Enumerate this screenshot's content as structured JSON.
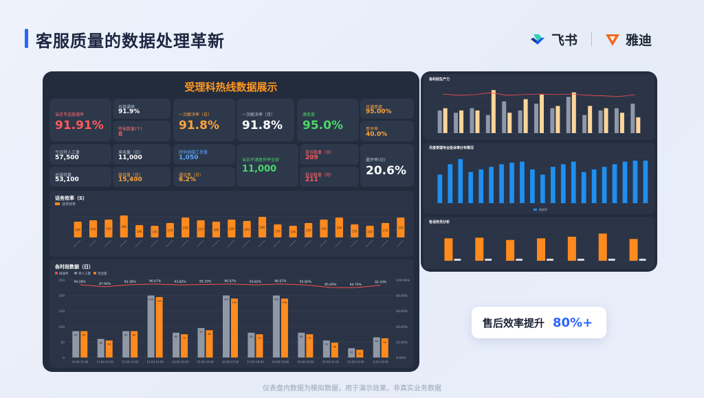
{
  "slide": {
    "title": "客服质量的数据处理革新",
    "brand_feishu": "飞书",
    "brand_yadea": "雅迪",
    "callout_text": "售后效率提升",
    "callout_value": "80%+",
    "footnote": "仪表盘内数据为模拟数据，用于演示效果，非真实业务数据"
  },
  "dashboard": {
    "title": "受理科热线数据展示",
    "kpis": {
      "big_red": {
        "label": "当日专送接通率",
        "value": "91.91%"
      },
      "sub1": {
        "label": "月接通率",
        "value": "91.9%"
      },
      "sub2": {
        "label": "呼损数量(个)",
        "value": "8"
      },
      "first_day": {
        "label": "一次解决率（日）",
        "value": "91.8%"
      },
      "first_month": {
        "label": "一次解决率（月）",
        "value": "91.8%"
      },
      "satisfaction": {
        "label": "满意度",
        "value": "95.0%"
      },
      "r1": {
        "label": "月满意度",
        "value": "95.00%"
      },
      "r2": {
        "label": "参评率",
        "value": "40.0%"
      },
      "manual": {
        "label": "今日转人工量",
        "value": "57,500"
      },
      "incoming": {
        "label": "来电量（日）",
        "value": "11,000"
      },
      "transfer": {
        "label": "转供销服工单量",
        "value": "1,050"
      },
      "dissatisfied": {
        "label": "当日不满意外呼全部",
        "value": "11,000"
      },
      "complaint": {
        "label": "投诉数量（日）",
        "value": "209"
      },
      "total_calls": {
        "label": "总接待量",
        "value": "53,100"
      },
      "served": {
        "label": "接待量（日）",
        "value": "15,400"
      },
      "rate": {
        "label": "通话率（日）",
        "value": "6.2%"
      },
      "complaint_month": {
        "label": "投诉数量（月）",
        "value": "211"
      },
      "eval": {
        "label": "邀评率(日)",
        "value": "20.6%"
      }
    },
    "efficiency": {
      "title": "话务效率（S）",
      "legend": "话务效率",
      "values": [
        190,
        210,
        220,
        280,
        140,
        130,
        170,
        250,
        210,
        190,
        220,
        200,
        260,
        150,
        130,
        170,
        220,
        250,
        150,
        130,
        170,
        250
      ]
    },
    "hourly": {
      "title": "各时段数据（日）",
      "legend": [
        "接通率",
        "转人工量",
        "电话量"
      ],
      "slots": [
        "10:00-11:00",
        "11:00-12:00",
        "12:00-13:00",
        "13:00-14:00",
        "14:00-15:00",
        "15:00-16:00",
        "16:00-17:00",
        "17:00-18:00",
        "18:00-19:00",
        "19:00-20:00",
        "20:00-21:00",
        "21:00-22:00",
        "8:00-10:00"
      ],
      "grey": [
        85,
        60,
        85,
        200,
        80,
        95,
        200,
        80,
        200,
        80,
        55,
        30,
        65
      ],
      "orange": [
        85,
        55,
        85,
        195,
        75,
        88,
        190,
        75,
        190,
        75,
        48,
        25,
        62
      ],
      "rate": [
        94.28,
        87.66,
        94.38,
        96.67,
        93.82,
        95.33,
        96.67,
        93.82,
        96.67,
        93.82,
        85.0,
        84.7,
        92.43
      ],
      "rate_labels": [
        "94.28%",
        "87.66%",
        "94.38%",
        "96.67%",
        "93.82%",
        "95.33%",
        "96.67%",
        "93.82%",
        "96.67%",
        "93.82%",
        "85.00%",
        "84.70%",
        "92.43%"
      ],
      "left_ticks": [
        "250",
        "200",
        "150",
        "100",
        "50",
        "0"
      ],
      "right_ticks": [
        "100.00%",
        "80.00%",
        "60.00%",
        "40.00%",
        "20.00%",
        "0.00%"
      ]
    }
  },
  "side": {
    "chart1": {
      "title": "各科别生产力",
      "grey": [
        50,
        45,
        55,
        40,
        70,
        50,
        65,
        55,
        80,
        40,
        50,
        55,
        65
      ],
      "peach": [
        55,
        50,
        50,
        95,
        45,
        75,
        85,
        60,
        90,
        60,
        55,
        45,
        35
      ],
      "line": [
        90,
        88,
        89,
        92,
        88,
        89,
        90,
        89,
        90,
        88,
        87,
        86,
        89
      ]
    },
    "chart2": {
      "title": "月度受理专业投诉率分布情况",
      "legend": "投诉率",
      "values": [
        55,
        75,
        85,
        60,
        65,
        70,
        75,
        78,
        80,
        65,
        55,
        70,
        75,
        80,
        60,
        65,
        70,
        75,
        80,
        82,
        82
      ]
    },
    "chart3": {
      "title": "各话务员分析",
      "values": [
        70,
        72,
        65,
        70,
        75,
        85,
        68
      ]
    }
  }
}
